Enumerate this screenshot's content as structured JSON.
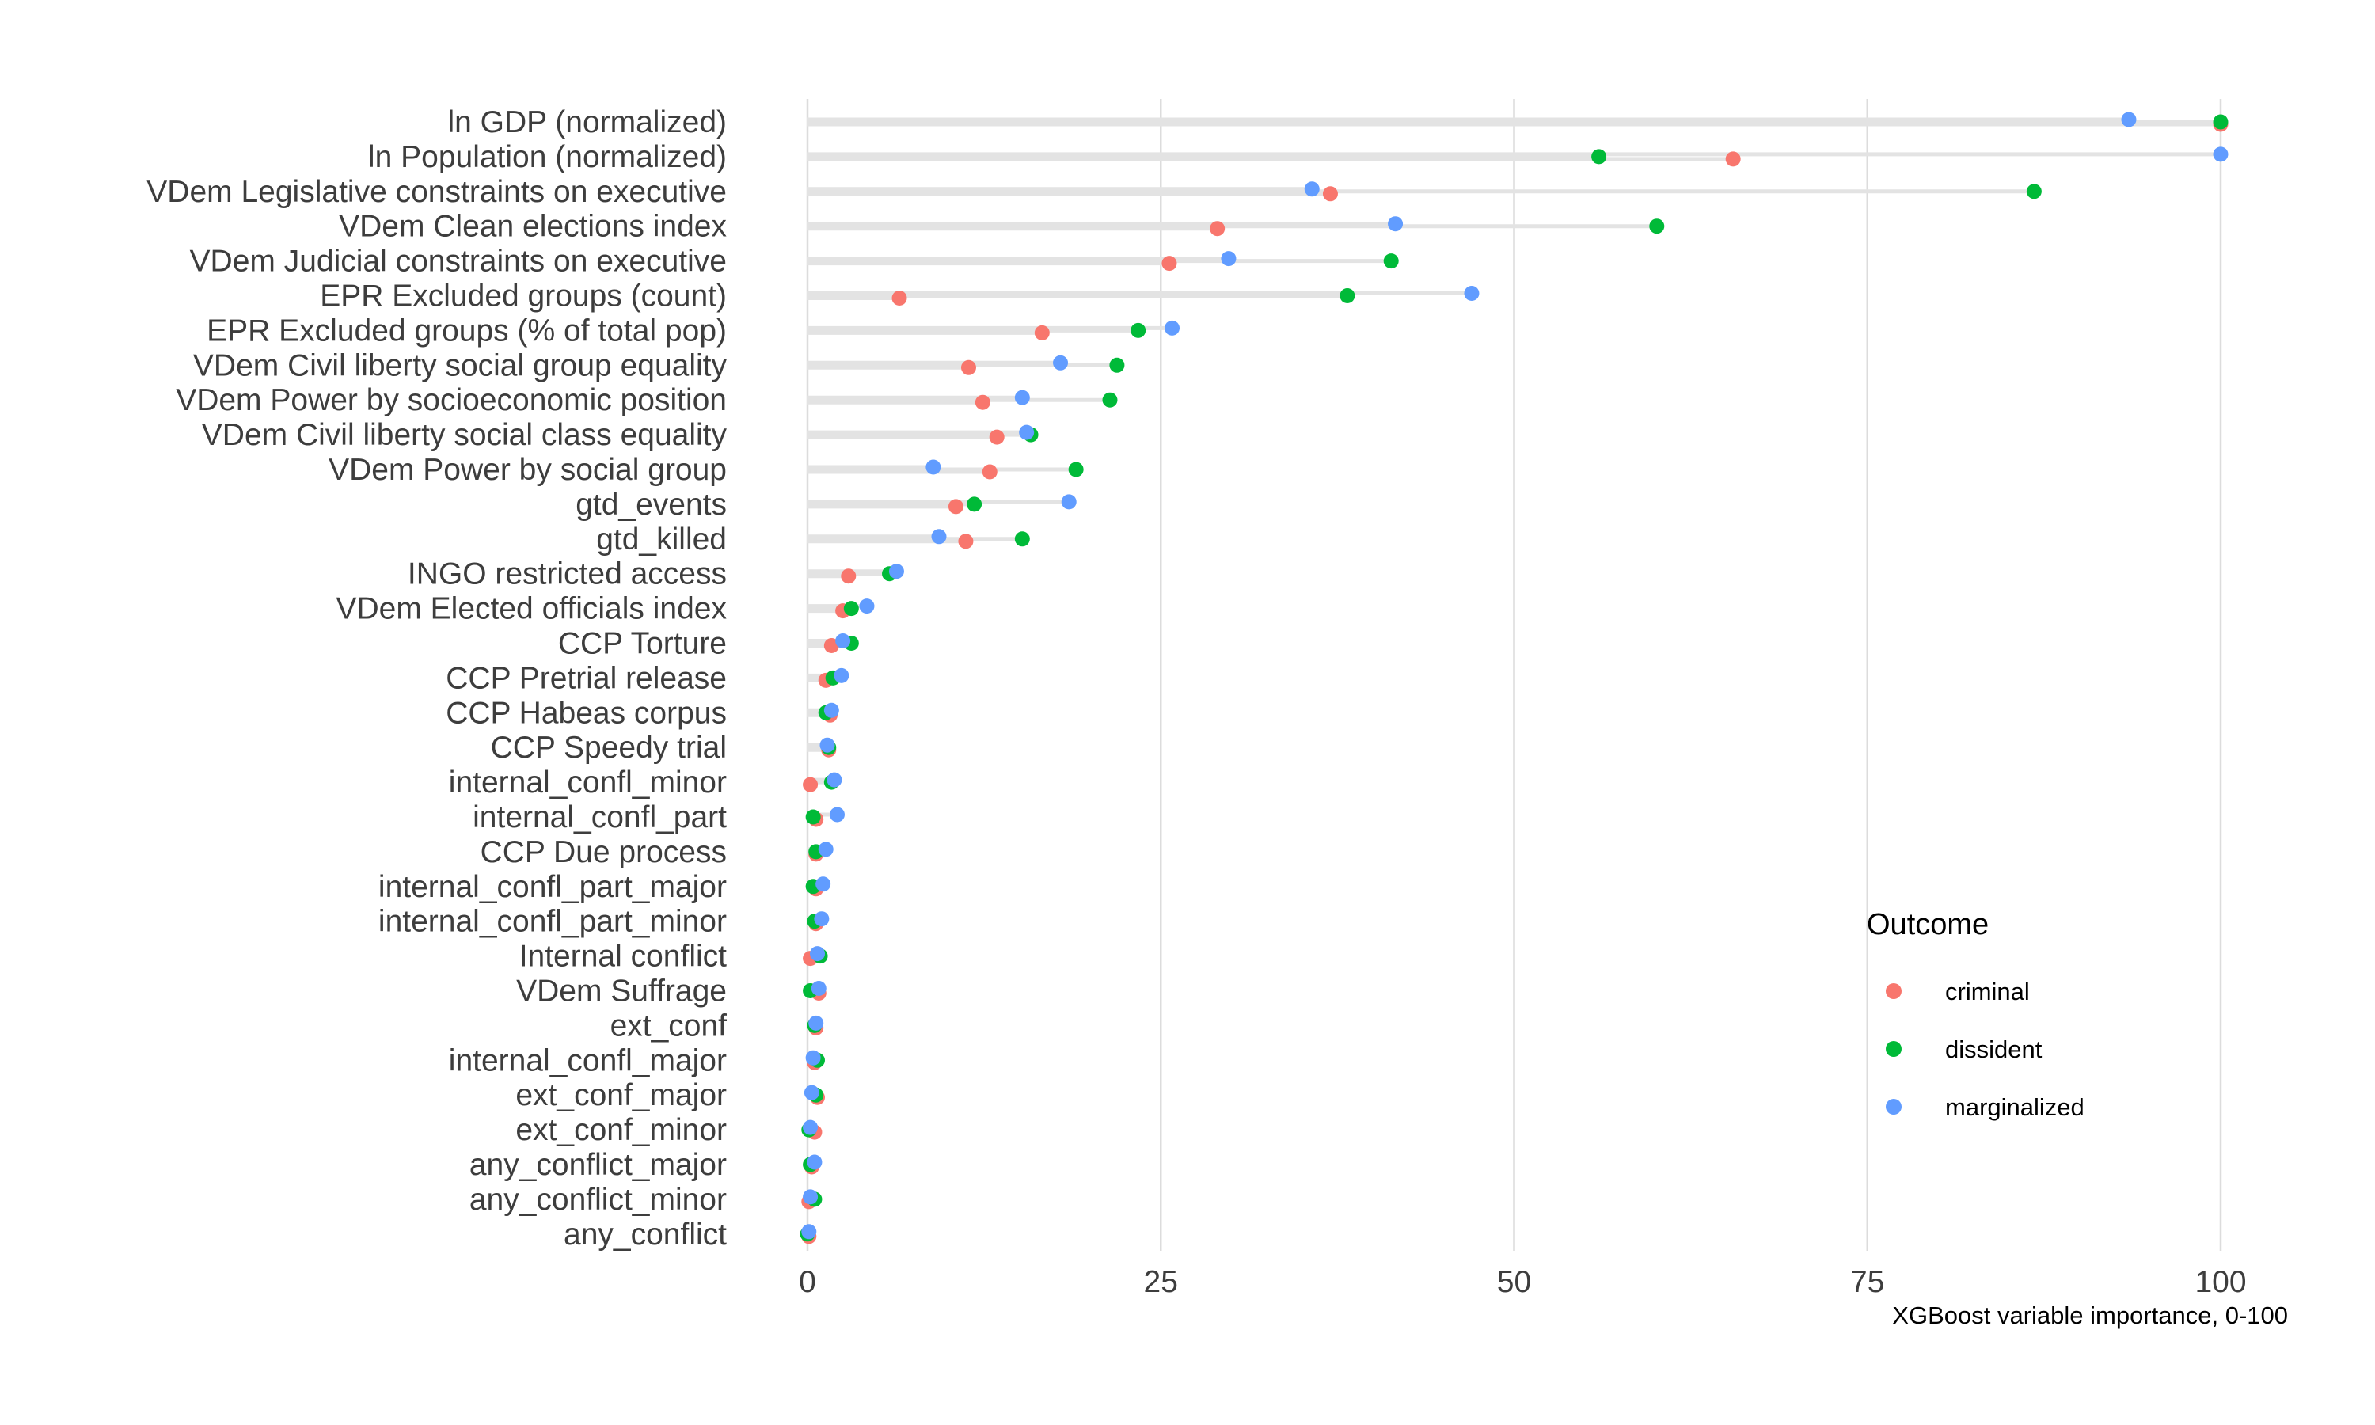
{
  "chart_data": {
    "type": "scatter",
    "xlabel": "XGBoost variable importance, 0-100",
    "xlim": [
      0,
      100
    ],
    "x_ticks": [
      0,
      25,
      50,
      75,
      100
    ],
    "x_tick_labels": [
      "0",
      "25",
      "50",
      "75",
      "100"
    ],
    "grid": true,
    "legend": {
      "title": "Outcome",
      "position": "right"
    },
    "categories": [
      "ln GDP (normalized)",
      "ln Population (normalized)",
      "VDem Legislative constraints on executive",
      "VDem Clean elections index",
      "VDem Judicial constraints on executive",
      "EPR Excluded groups (count)",
      "EPR Excluded groups (% of total pop)",
      "VDem Civil liberty social group equality",
      "VDem Power by socioeconomic position",
      "VDem Civil liberty social class equality",
      "VDem Power by social group",
      "gtd_events",
      "gtd_killed",
      "INGO restricted access",
      "VDem Elected officials index",
      "CCP Torture",
      "CCP Pretrial release",
      "CCP Habeas corpus",
      "CCP Speedy trial",
      "internal_confl_minor",
      "internal_confl_part",
      "CCP Due process",
      "internal_confl_part_major",
      "internal_confl_part_minor",
      "Internal conflict",
      "VDem Suffrage",
      "ext_conf",
      "internal_confl_major",
      "ext_conf_major",
      "ext_conf_minor",
      "any_conflict_major",
      "any_conflict_minor",
      "any_conflict"
    ],
    "series": [
      {
        "name": "criminal",
        "color": "#F8766D",
        "values": [
          100,
          65.5,
          37,
          29,
          25.6,
          6.5,
          16.6,
          11.4,
          12.4,
          13.4,
          12.9,
          10.5,
          11.2,
          2.9,
          2.5,
          1.7,
          1.3,
          1.6,
          1.5,
          0.2,
          0.6,
          0.6,
          0.6,
          0.6,
          0.2,
          0.8,
          0.6,
          0.5,
          0.7,
          0.5,
          0.3,
          0.1,
          0.1
        ]
      },
      {
        "name": "dissident",
        "color": "#00BA38",
        "values": [
          100,
          56,
          86.8,
          60.1,
          41.3,
          38.2,
          23.4,
          21.9,
          21.4,
          15.8,
          19,
          11.8,
          15.2,
          5.8,
          3.1,
          3.1,
          1.8,
          1.3,
          1.5,
          1.7,
          0.4,
          0.6,
          0.4,
          0.5,
          0.9,
          0.2,
          0.5,
          0.7,
          0.6,
          0.1,
          0.2,
          0.5,
          0
        ]
      },
      {
        "name": "marginalized",
        "color": "#619CFF",
        "values": [
          93.5,
          100,
          35.7,
          41.6,
          29.8,
          47,
          25.8,
          17.9,
          15.2,
          15.5,
          8.9,
          18.5,
          9.3,
          6.3,
          4.2,
          2.5,
          2.4,
          1.7,
          1.4,
          1.9,
          2.1,
          1.3,
          1.1,
          1.0,
          0.7,
          0.8,
          0.6,
          0.4,
          0.3,
          0.2,
          0.5,
          0.2,
          0.1
        ]
      }
    ]
  }
}
